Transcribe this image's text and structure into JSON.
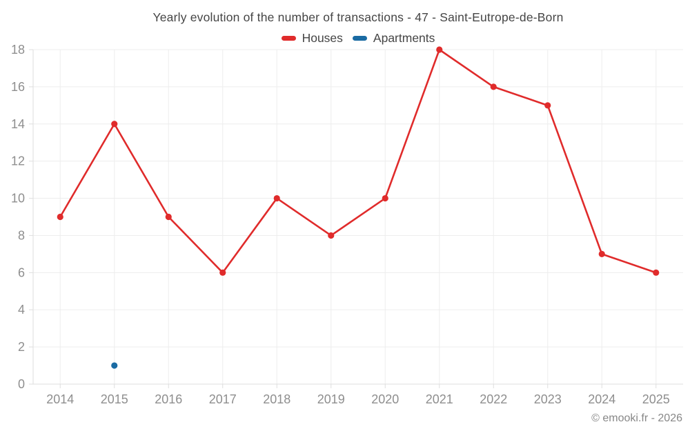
{
  "title": "Yearly evolution of the number of transactions - 47 - Saint-Eutrope-de-Born",
  "footer": "© emooki.fr - 2026",
  "colors": {
    "houses": "#e02b2b",
    "apartments": "#1a6ba3",
    "grid": "#ededed",
    "axis": "#dedede",
    "tick_label": "#8e8e8e",
    "heading_text": "#454545",
    "watermark_text": "#878787",
    "background": "#ffffff"
  },
  "chart_data": {
    "type": "line",
    "title": "Yearly evolution of the number of transactions - 47 - Saint-Eutrope-de-Born",
    "xlabel": "",
    "ylabel": "",
    "categories": [
      "2014",
      "2015",
      "2016",
      "2017",
      "2018",
      "2019",
      "2020",
      "2021",
      "2022",
      "2023",
      "2024",
      "2025"
    ],
    "series": [
      {
        "name": "Houses",
        "color": "#e02b2b",
        "values": [
          9,
          14,
          9,
          6,
          10,
          8,
          10,
          18,
          16,
          15,
          7,
          6
        ]
      },
      {
        "name": "Apartments",
        "color": "#1a6ba3",
        "values": [
          null,
          1,
          null,
          null,
          null,
          null,
          null,
          null,
          null,
          null,
          null,
          null
        ]
      }
    ],
    "ylim": [
      0,
      18
    ],
    "ytick_step": 2,
    "grid": true,
    "legend_position": "top"
  }
}
